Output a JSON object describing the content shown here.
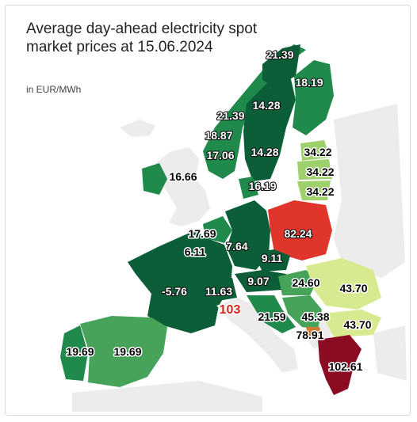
{
  "header": {
    "title": "Average day-ahead electricity spot market prices at 15.06.2024",
    "unit": "in EUR/MWh"
  },
  "colors": {
    "dark_green": "#0b5e37",
    "mid_green": "#1f8a4c",
    "light_green": "#47a35a",
    "pale_green": "#9ed06b",
    "yellow_green": "#d8ea8f",
    "red": "#e0352b",
    "dark_red": "#8b0b23",
    "non_eu": "#ececec"
  },
  "regions": [
    {
      "id": "norway-north",
      "value": "21.39"
    },
    {
      "id": "finland",
      "value": "18.19"
    },
    {
      "id": "sweden-north",
      "value": "14.28"
    },
    {
      "id": "norway-central",
      "value": "21.39"
    },
    {
      "id": "norway-west",
      "value": "18.87"
    },
    {
      "id": "norway-south",
      "value": "17.06"
    },
    {
      "id": "sweden-south",
      "value": "14.28"
    },
    {
      "id": "ireland",
      "value": "16.66"
    },
    {
      "id": "denmark",
      "value": "16.19"
    },
    {
      "id": "estonia",
      "value": "34.22"
    },
    {
      "id": "latvia",
      "value": "34.22"
    },
    {
      "id": "lithuania",
      "value": "34.22"
    },
    {
      "id": "belgium",
      "value": "17.69"
    },
    {
      "id": "luxembourg",
      "value": "6.11"
    },
    {
      "id": "germany",
      "value": "7.64"
    },
    {
      "id": "poland",
      "value": "82.24"
    },
    {
      "id": "czechia",
      "value": "9.11"
    },
    {
      "id": "austria",
      "value": "9.07"
    },
    {
      "id": "france",
      "value": "-5.76"
    },
    {
      "id": "switzerland",
      "value": "11.63"
    },
    {
      "id": "italy",
      "value": "103"
    },
    {
      "id": "hungary",
      "value": "24.60"
    },
    {
      "id": "romania",
      "value": "43.70"
    },
    {
      "id": "croatia",
      "value": "21.59"
    },
    {
      "id": "serbia",
      "value": "45.38"
    },
    {
      "id": "bulgaria",
      "value": "43.70"
    },
    {
      "id": "north-macedonia",
      "value": "78.91"
    },
    {
      "id": "greece",
      "value": "102.61"
    },
    {
      "id": "portugal",
      "value": "19.69"
    },
    {
      "id": "spain",
      "value": "19.69"
    }
  ]
}
